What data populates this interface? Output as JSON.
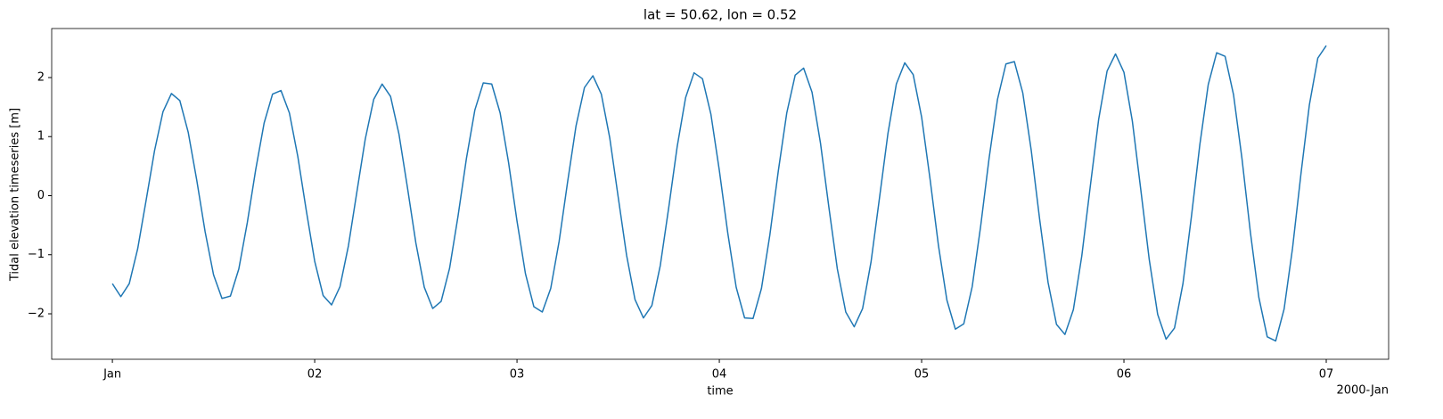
{
  "chart_data": {
    "type": "line",
    "title": "lat = 50.62, lon = 0.52",
    "xlabel": "time",
    "ylabel": "Tidal elevation timeseries [m]",
    "x_offset_label": "2000-Jan",
    "x": [
      0,
      1,
      2,
      3,
      4,
      5,
      6,
      7,
      8,
      9,
      10,
      11,
      12,
      13,
      14,
      15,
      16,
      17,
      18,
      19,
      20,
      21,
      22,
      23,
      24,
      25,
      26,
      27,
      28,
      29,
      30,
      31,
      32,
      33,
      34,
      35,
      36,
      37,
      38,
      39,
      40,
      41,
      42,
      43,
      44,
      45,
      46,
      47,
      48,
      49,
      50,
      51,
      52,
      53,
      54,
      55,
      56,
      57,
      58,
      59,
      60,
      61,
      62,
      63,
      64,
      65,
      66,
      67,
      68,
      69,
      70,
      71,
      72,
      73,
      74,
      75,
      76,
      77,
      78,
      79,
      80,
      81,
      82,
      83,
      84,
      85,
      86,
      87,
      88,
      89,
      90,
      91,
      92,
      93,
      94,
      95,
      96,
      97,
      98,
      99,
      100,
      101,
      102,
      103,
      104,
      105,
      106,
      107,
      108,
      109,
      110,
      111,
      112,
      113,
      114,
      115,
      116,
      117,
      118,
      119,
      120,
      121,
      122,
      123,
      124,
      125,
      126,
      127,
      128,
      129,
      130,
      131,
      132,
      133,
      134,
      135,
      136,
      137,
      138,
      139,
      140,
      141,
      142,
      143,
      144
    ],
    "series": [
      {
        "color": "#1f77b4",
        "values": [
          -1.49,
          -1.71,
          -1.49,
          -0.9,
          -0.08,
          0.76,
          1.42,
          1.73,
          1.61,
          1.07,
          0.27,
          -0.61,
          -1.34,
          -1.74,
          -1.7,
          -1.24,
          -0.46,
          0.44,
          1.23,
          1.72,
          1.78,
          1.4,
          0.66,
          -0.25,
          -1.11,
          -1.69,
          -1.85,
          -1.54,
          -0.85,
          0.06,
          0.96,
          1.63,
          1.89,
          1.68,
          1.04,
          0.14,
          -0.8,
          -1.55,
          -1.91,
          -1.79,
          -1.23,
          -0.35,
          0.63,
          1.45,
          1.91,
          1.89,
          1.4,
          0.56,
          -0.43,
          -1.32,
          -1.88,
          -1.97,
          -1.57,
          -0.77,
          0.23,
          1.18,
          1.83,
          2.03,
          1.72,
          0.98,
          -0.02,
          -1.01,
          -1.76,
          -2.07,
          -1.86,
          -1.18,
          -0.2,
          0.83,
          1.66,
          2.08,
          1.98,
          1.38,
          0.43,
          -0.63,
          -1.55,
          -2.07,
          -2.08,
          -1.57,
          -0.66,
          0.42,
          1.4,
          2.04,
          2.16,
          1.75,
          0.89,
          -0.2,
          -1.24,
          -1.97,
          -2.22,
          -1.91,
          -1.12,
          -0.04,
          1.05,
          1.89,
          2.25,
          2.05,
          1.33,
          0.28,
          -0.85,
          -1.77,
          -2.26,
          -2.17,
          -1.54,
          -0.52,
          0.63,
          1.63,
          2.23,
          2.27,
          1.74,
          0.77,
          -0.4,
          -1.47,
          -2.18,
          -2.35,
          -1.93,
          -1.02,
          0.15,
          1.29,
          2.11,
          2.4,
          2.09,
          1.26,
          0.1,
          -1.08,
          -2.01,
          -2.43,
          -2.24,
          -1.49,
          -0.36,
          0.86,
          1.88,
          2.42,
          2.36,
          1.71,
          0.63,
          -0.62,
          -1.72,
          -2.39,
          -2.46,
          -1.92,
          -0.89,
          0.37,
          1.54,
          2.33,
          2.54
        ]
      }
    ],
    "xlim": [
      -7.2,
      151.4
    ],
    "ylim": [
      -2.77,
      2.83
    ],
    "xticks": [
      {
        "value": 0,
        "label": "Jan"
      },
      {
        "value": 24,
        "label": "02"
      },
      {
        "value": 48,
        "label": "03"
      },
      {
        "value": 72,
        "label": "04"
      },
      {
        "value": 96,
        "label": "05"
      },
      {
        "value": 120,
        "label": "06"
      },
      {
        "value": 144,
        "label": "07"
      }
    ],
    "yticks": [
      {
        "value": -2,
        "label": "−2"
      },
      {
        "value": -1,
        "label": "−1"
      },
      0,
      1,
      2
    ],
    "grid": false
  }
}
